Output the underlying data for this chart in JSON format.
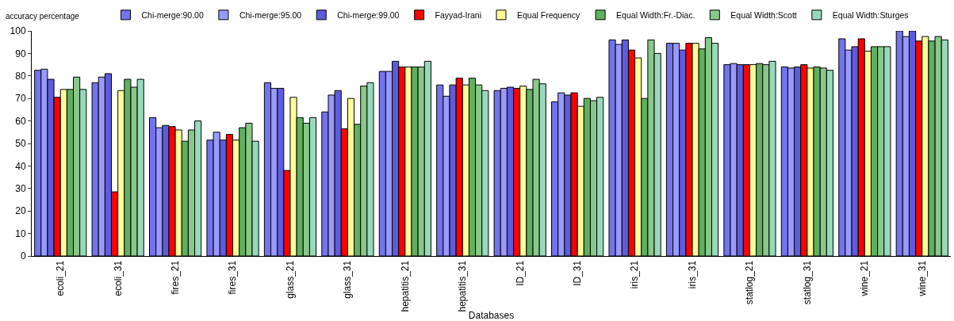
{
  "chart_data": {
    "type": "bar",
    "xlabel": "Databases",
    "ylabel": "accuracy percentage",
    "categories": [
      "ecoli_21",
      "ecoli_31",
      "fires_21",
      "fires_31",
      "glass_21",
      "glass_31",
      "hepatitis_21",
      "hepatitis_31",
      "ID_21",
      "ID_31",
      "iris_21",
      "iris_31",
      "statlog_21",
      "statlog_31",
      "wine_21",
      "wine_31"
    ],
    "series": [
      {
        "name": "Chi-merge:90.00",
        "color": "#7373ee",
        "values": [
          82.5,
          77,
          61.5,
          51.5,
          77,
          64,
          82,
          76,
          73.5,
          68.5,
          96,
          94.5,
          85,
          84,
          96.5,
          100
        ]
      },
      {
        "name": "Chi-merge:95.00",
        "color": "#9999ff",
        "values": [
          83,
          79.5,
          57,
          55,
          74.5,
          71.5,
          82,
          71,
          74.5,
          72.5,
          94,
          94.5,
          85.5,
          83.5,
          91.5,
          97.5
        ]
      },
      {
        "name": "Chi-merge:99.00",
        "color": "#5c5cdd",
        "values": [
          78.5,
          81,
          58,
          51.5,
          74.5,
          73.5,
          86.5,
          76,
          75,
          71.5,
          96,
          91.5,
          85,
          84,
          93,
          100
        ]
      },
      {
        "name": "Fayyad-Irani",
        "color": "#ff0000",
        "values": [
          70.5,
          28.5,
          57.5,
          54,
          38,
          56.5,
          84,
          79,
          74.5,
          72.5,
          91.5,
          94.5,
          85,
          85,
          96.5,
          95.5
        ]
      },
      {
        "name": "Equal Frequency",
        "color": "#ffff99",
        "values": [
          74,
          73.5,
          56,
          51.5,
          70.5,
          70,
          84,
          76,
          75.5,
          66.5,
          88,
          94.5,
          85,
          83.5,
          91,
          97.5
        ]
      },
      {
        "name": "Equal Width:Fr.-Diac.",
        "color": "#5fb05f",
        "values": [
          74,
          78.5,
          51,
          57,
          61.5,
          58.5,
          84,
          79,
          74,
          70,
          70,
          92,
          85.5,
          84,
          93,
          95.5
        ]
      },
      {
        "name": "Equal Width:Scott",
        "color": "#88c888",
        "values": [
          79.5,
          75,
          56,
          59,
          59,
          75.5,
          84,
          76,
          78.5,
          69,
          96,
          97,
          85,
          83.5,
          93,
          97.5
        ]
      },
      {
        "name": "Equal Width:Sturges",
        "color": "#99d9bb",
        "values": [
          74,
          78.5,
          60,
          51,
          61.5,
          77,
          86.5,
          73.5,
          76.5,
          70.5,
          90,
          94.5,
          86.5,
          82.5,
          93,
          96
        ]
      }
    ],
    "ylim": [
      0,
      100
    ],
    "yticks": [
      0,
      10,
      20,
      30,
      40,
      50,
      60,
      70,
      80,
      90,
      100
    ],
    "grid": false,
    "legend": "top"
  }
}
